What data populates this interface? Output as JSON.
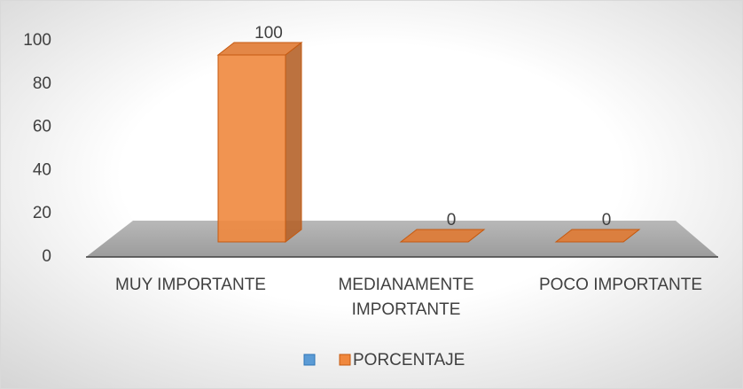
{
  "chart_data": {
    "type": "bar3d",
    "categories": [
      "MUY IMPORTANTE",
      "MEDIANAMENTE IMPORTANTE",
      "POCO IMPORTANTE"
    ],
    "series": [
      {
        "name": "PORCENTAJE",
        "color": "#f0883e",
        "values": [
          100,
          0,
          0
        ]
      }
    ],
    "ylim": [
      0,
      100
    ],
    "yticks": [
      0,
      20,
      40,
      60,
      80,
      100
    ]
  }
}
